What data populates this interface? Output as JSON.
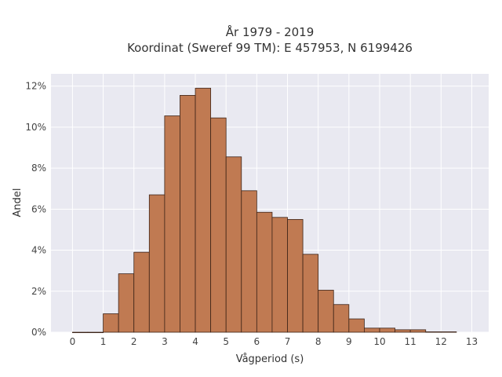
{
  "chart_data": {
    "type": "bar",
    "title_line1": "År 1979 - 2019",
    "title_line2": "Koordinat (Sweref 99 TM): E 457953, N 6199426",
    "xlabel": "Vågperiod (s)",
    "ylabel": "Andel",
    "bin_width": 0.5,
    "x": [
      0,
      0.5,
      1,
      1.5,
      2,
      2.5,
      3,
      3.5,
      4,
      4.5,
      5,
      5.5,
      6,
      6.5,
      7,
      7.5,
      8,
      8.5,
      9,
      9.5,
      10,
      10.5,
      11,
      11.5,
      12
    ],
    "values": [
      0.0,
      0.0,
      0.9,
      2.85,
      3.9,
      6.7,
      10.55,
      11.55,
      11.9,
      10.45,
      8.55,
      6.9,
      5.85,
      5.6,
      5.5,
      3.8,
      2.05,
      1.35,
      0.65,
      0.2,
      0.2,
      0.12,
      0.12,
      0.02,
      0.02
    ],
    "xlim": [
      -0.7,
      13.55
    ],
    "ylim": [
      0,
      12.6
    ],
    "xticks": [
      0,
      1,
      2,
      3,
      4,
      5,
      6,
      7,
      8,
      9,
      10,
      11,
      12,
      13
    ],
    "xtick_labels": [
      "0",
      "1",
      "2",
      "3",
      "4",
      "5",
      "6",
      "7",
      "8",
      "9",
      "10",
      "11",
      "12",
      "13"
    ],
    "yticks": [
      0,
      2,
      4,
      6,
      8,
      10,
      12
    ],
    "ytick_labels": [
      "0%",
      "2%",
      "4%",
      "6%",
      "8%",
      "10%",
      "12%"
    ],
    "grid": true,
    "colors": {
      "bar_fill": "#c07a52",
      "bar_stroke": "#3d2418",
      "plot_bg": "#e9e9f1",
      "grid": "#ffffff"
    }
  }
}
